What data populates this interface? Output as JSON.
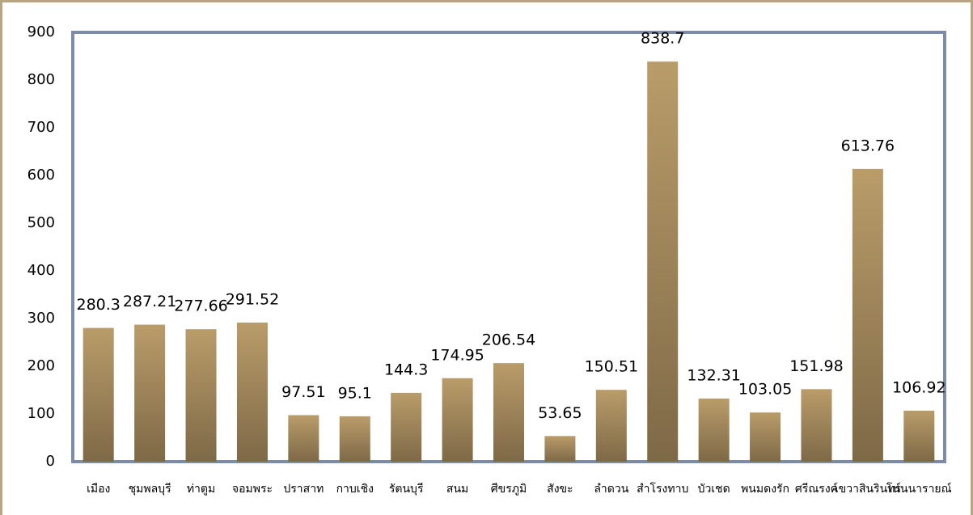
{
  "chart_data": {
    "type": "bar",
    "categories": [
      "เมือง",
      "ชุมพลบุรี",
      "ท่าตูม",
      "จอมพระ",
      "ปราสาท",
      "กาบเชิง",
      "รัตนบุรี",
      "สนม",
      "ศีขรภูมิ",
      "สังขะ",
      "ลำดวน",
      "สำโรงทาบ",
      "บัวเชด",
      "พนมดงรัก",
      "ศรีณรงค์",
      "เขวาสินรินทร์",
      "โนนนารายณ์"
    ],
    "values": [
      280.3,
      287.21,
      277.66,
      291.52,
      97.51,
      95.1,
      144.3,
      174.95,
      206.54,
      53.65,
      150.51,
      838.7,
      132.31,
      103.05,
      151.98,
      613.76,
      106.92
    ],
    "color": "#b0925f",
    "ylim": [
      0,
      900
    ],
    "yticks": [
      0,
      100,
      200,
      300,
      400,
      500,
      600,
      700,
      800,
      900
    ],
    "grid": false
  }
}
